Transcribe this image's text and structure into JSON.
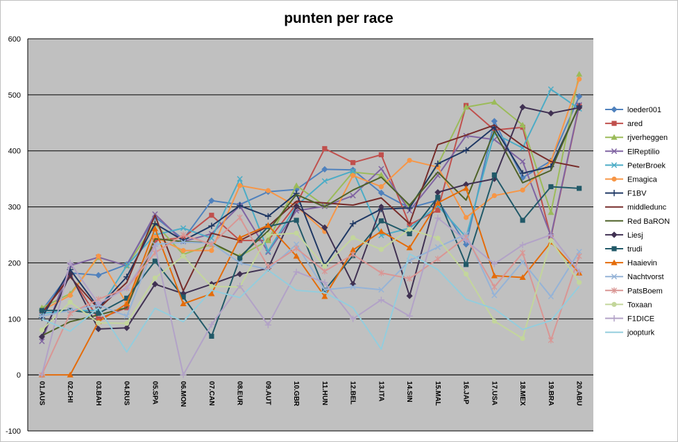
{
  "chart_data": {
    "type": "line",
    "title": "punten per race",
    "xlabel": "",
    "ylabel": "",
    "ylim": [
      -100,
      600
    ],
    "ytick_step": 100,
    "grid": true,
    "legend": "right",
    "plot_background": "#c0c0c0",
    "categories": [
      "01.AUS",
      "02.CHI",
      "03.BAH",
      "04.RUS",
      "05.SPA",
      "06.MON",
      "07.CAN",
      "08.EUR",
      "09.AUT",
      "10.GBR",
      "11.HUN",
      "12.BEL",
      "13.ITA",
      "14.SIN",
      "15.MAL",
      "16.JAP",
      "17.USA",
      "18.MEX",
      "19.BRA",
      "20.ABU"
    ],
    "series": [
      {
        "name": "loeder001",
        "color": "#4f81bd",
        "marker": "diamond",
        "values": [
          115,
          182,
          178,
          197,
          282,
          242,
          311,
          304,
          327,
          331,
          367,
          366,
          325,
          298,
          312,
          233,
          453,
          352,
          382,
          497
        ]
      },
      {
        "name": "ared",
        "color": "#c0504d",
        "marker": "square",
        "values": [
          110,
          178,
          100,
          120,
          240,
          245,
          285,
          240,
          240,
          305,
          404,
          379,
          393,
          268,
          294,
          481,
          437,
          442,
          246,
          480
        ]
      },
      {
        "name": "rjverheggen",
        "color": "#9bbb59",
        "marker": "triangle",
        "values": [
          120,
          145,
          210,
          195,
          270,
          215,
          233,
          212,
          240,
          338,
          302,
          362,
          357,
          300,
          375,
          478,
          487,
          446,
          290,
          537
        ]
      },
      {
        "name": "ElReptilio",
        "color": "#8064a2",
        "marker": "x",
        "values": [
          60,
          195,
          210,
          195,
          287,
          238,
          252,
          302,
          219,
          293,
          301,
          320,
          368,
          293,
          356,
          427,
          420,
          381,
          248,
          482
        ]
      },
      {
        "name": "PeterBroek",
        "color": "#4bacc6",
        "marker": "x",
        "values": [
          110,
          115,
          115,
          195,
          250,
          262,
          244,
          350,
          221,
          302,
          346,
          364,
          249,
          262,
          302,
          246,
          431,
          405,
          510,
          475
        ]
      },
      {
        "name": "Emagica",
        "color": "#f79646",
        "marker": "circle",
        "values": [
          115,
          142,
          212,
          127,
          246,
          222,
          222,
          338,
          329,
          301,
          256,
          356,
          336,
          383,
          371,
          281,
          320,
          330,
          381,
          528
        ]
      },
      {
        "name": "F1BV",
        "color": "#1f3864",
        "marker": "plus",
        "values": [
          102,
          188,
          120,
          175,
          270,
          240,
          266,
          302,
          283,
          324,
          195,
          270,
          296,
          298,
          377,
          401,
          442,
          360,
          372,
          480
        ]
      },
      {
        "name": "middledunc",
        "color": "#772c2a",
        "marker": "none",
        "values": [
          110,
          175,
          118,
          165,
          285,
          150,
          253,
          240,
          265,
          310,
          307,
          303,
          316,
          270,
          411,
          428,
          446,
          409,
          381,
          371
        ]
      },
      {
        "name": "Red BaRON",
        "color": "#4f6228",
        "marker": "none",
        "values": [
          70,
          95,
          107,
          120,
          243,
          238,
          236,
          211,
          257,
          322,
          300,
          330,
          353,
          303,
          362,
          312,
          435,
          343,
          365,
          482
        ]
      },
      {
        "name": "Liesj",
        "color": "#403152",
        "marker": "diamond",
        "values": [
          68,
          180,
          82,
          84,
          162,
          145,
          162,
          180,
          190,
          301,
          263,
          162,
          300,
          141,
          326,
          340,
          350,
          478,
          467,
          477
        ]
      },
      {
        "name": "trudi",
        "color": "#215968",
        "marker": "square",
        "values": [
          115,
          115,
          110,
          137,
          203,
          139,
          69,
          208,
          265,
          276,
          151,
          213,
          275,
          252,
          317,
          197,
          357,
          276,
          336,
          333
        ]
      },
      {
        "name": "Haaievin",
        "color": "#e46c0a",
        "marker": "triangle",
        "values": [
          0,
          0,
          95,
          127,
          261,
          127,
          145,
          245,
          267,
          212,
          140,
          223,
          256,
          227,
          307,
          333,
          177,
          174,
          237,
          182
        ]
      },
      {
        "name": "Nachtvorst",
        "color": "#95b3d7",
        "marker": "x",
        "values": [
          105,
          115,
          125,
          105,
          233,
          237,
          235,
          200,
          188,
          233,
          152,
          157,
          152,
          204,
          228,
          251,
          142,
          202,
          140,
          220
        ]
      },
      {
        "name": "PatsBoem",
        "color": "#d99694",
        "marker": "star",
        "values": [
          0,
          110,
          135,
          155,
          218,
          250,
          233,
          281,
          193,
          226,
          185,
          215,
          182,
          172,
          207,
          246,
          157,
          218,
          62,
          212
        ]
      },
      {
        "name": "Toxaan",
        "color": "#c3d69b",
        "marker": "circle",
        "values": [
          80,
          130,
          93,
          92,
          173,
          212,
          158,
          157,
          250,
          253,
          194,
          245,
          224,
          260,
          244,
          180,
          96,
          65,
          240,
          165
        ]
      },
      {
        "name": "F1DICE",
        "color": "#b2a2c7",
        "marker": "plus",
        "values": [
          0,
          200,
          127,
          155,
          230,
          0,
          90,
          159,
          89,
          184,
          165,
          100,
          134,
          105,
          280,
          240,
          198,
          232,
          250,
          184
        ]
      },
      {
        "name": "joopturk",
        "color": "#93cddd",
        "marker": "none",
        "values": [
          100,
          78,
          120,
          41,
          119,
          95,
          151,
          138,
          187,
          151,
          147,
          120,
          46,
          216,
          188,
          135,
          118,
          81,
          97,
          158
        ]
      }
    ]
  }
}
